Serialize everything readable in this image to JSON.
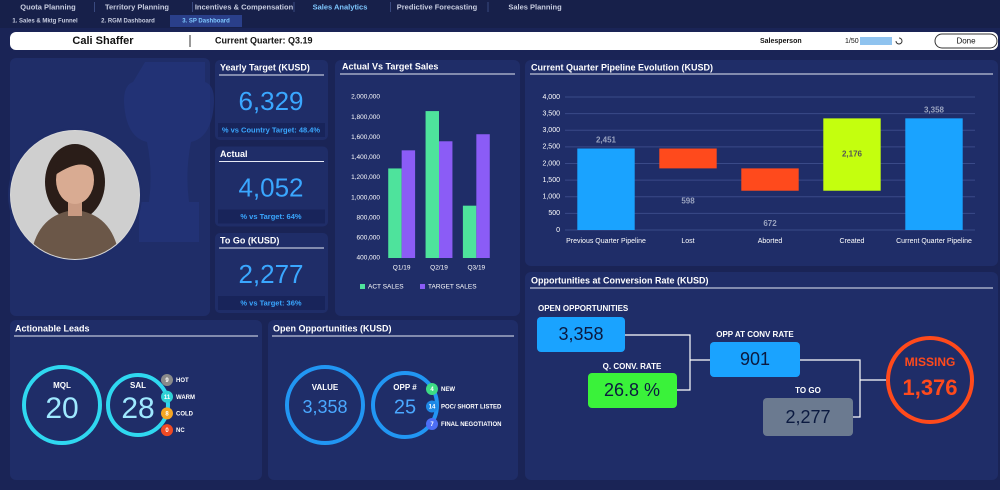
{
  "tabs": [
    "Quota Planning",
    "Territory Planning",
    "Incentives & Compensation",
    "Sales Analytics",
    "Predictive Forecasting",
    "Sales Planning"
  ],
  "subtabs": [
    "1. Sales & Mktg Funnel",
    "2. RGM Dashboard",
    "3. SP Dashboard"
  ],
  "header": {
    "name": "Cali Shaffer",
    "quarter": "Current Quarter: Q3.19",
    "salesperson_label": "Salesperson",
    "pager": "1/50",
    "done": "Done"
  },
  "kpis": [
    {
      "title": "Yearly Target (KUSD)",
      "value": "6,329",
      "note": "% vs Country Target: 48.4%"
    },
    {
      "title": "Actual",
      "value": "4,052",
      "note": "% vs Target: 64%"
    },
    {
      "title": "To Go (KUSD)",
      "value": "2,277",
      "note": "% vs Target: 36%"
    }
  ],
  "leads": {
    "title": "Actionable Leads",
    "mql": {
      "label": "MQL",
      "value": "20"
    },
    "sal": {
      "label": "SAL",
      "value": "28"
    },
    "breakdown": [
      {
        "count": "9",
        "label": "HOT",
        "color": "#8a8a8a"
      },
      {
        "count": "11",
        "label": "WARM",
        "color": "#2ed1d6"
      },
      {
        "count": "8",
        "label": "COLD",
        "color": "#f5a623"
      },
      {
        "count": "0",
        "label": "NC",
        "color": "#f04a23"
      }
    ]
  },
  "open_opps": {
    "title": "Open Opportunities (KUSD)",
    "value": {
      "label": "VALUE",
      "value": "3,358"
    },
    "opp": {
      "label": "OPP #",
      "value": "25"
    },
    "breakdown": [
      {
        "count": "4",
        "label": "NEW",
        "color": "#3ddc84"
      },
      {
        "count": "14",
        "label": "POC/ SHORT LISTED",
        "color": "#1e88e5"
      },
      {
        "count": "7",
        "label": "FINAL NEGOTIATION",
        "color": "#4c6ef5"
      }
    ]
  },
  "conversion": {
    "title": "Opportunities at Conversion Rate (KUSD)",
    "open_label": "OPEN OPPORTUNITIES",
    "open": "3,358",
    "rate_label": "Q. CONV. RATE",
    "rate": "26.8 %",
    "conv_label": "OPP AT CONV RATE",
    "conv": "901",
    "togo_label": "TO GO",
    "togo": "2,277",
    "missing_label": "MISSING",
    "missing": "1,376"
  },
  "chart_data": [
    {
      "type": "bar",
      "title": "Actual Vs Target Sales",
      "categories": [
        "Q1/19",
        "Q2/19",
        "Q3/19"
      ],
      "series": [
        {
          "name": "ACT SALES",
          "color": "#4ee39c",
          "values": [
            1290000,
            1860000,
            920000
          ]
        },
        {
          "name": "TARGET SALES",
          "color": "#8b5cf6",
          "values": [
            1470000,
            1560000,
            1630000
          ]
        }
      ],
      "ylim": [
        400000,
        2000000
      ],
      "yticks": [
        {
          "value": 400000,
          "label": "400,000"
        },
        {
          "value": 600000,
          "label": "600,000"
        },
        {
          "value": 800000,
          "label": "800,000"
        },
        {
          "value": 1000000,
          "label": "1,000,000"
        },
        {
          "value": 1200000,
          "label": "1,200,000"
        },
        {
          "value": 1400000,
          "label": "1,400,000"
        },
        {
          "value": 1600000,
          "label": "1,600,000"
        },
        {
          "value": 1800000,
          "label": "1,800,000"
        },
        {
          "value": 2000000,
          "label": "2,000,000"
        }
      ],
      "grid": false
    },
    {
      "type": "waterfall",
      "title": "Current Quarter Pipeline Evolution (KUSD)",
      "categories": [
        "Previous Quarter Pipeline",
        "Lost",
        "Aborted",
        "Created",
        "Current Quarter Pipeline"
      ],
      "values": [
        2451,
        598,
        672,
        2176,
        3358
      ],
      "value_labels": [
        "2,451",
        "598",
        "672",
        "2,176",
        "3,358"
      ],
      "measure": [
        "absolute",
        "decrease",
        "decrease",
        "increase",
        "total"
      ],
      "colors": {
        "total": "#1aa3ff",
        "decrease": "#ff4a1c",
        "increase": "#c4ff0e"
      },
      "ylim": [
        0,
        4000
      ],
      "yticks": [
        0,
        500,
        {
          "value": 1000,
          "label": "1,000"
        },
        {
          "value": 1500,
          "label": "1,500"
        },
        {
          "value": 2000,
          "label": "2,000"
        },
        {
          "value": 2500,
          "label": "2,500"
        },
        {
          "value": 3000,
          "label": "3,000"
        },
        {
          "value": 3500,
          "label": "3,500"
        },
        {
          "value": 4000,
          "label": "4,000"
        }
      ],
      "grid": true
    }
  ]
}
